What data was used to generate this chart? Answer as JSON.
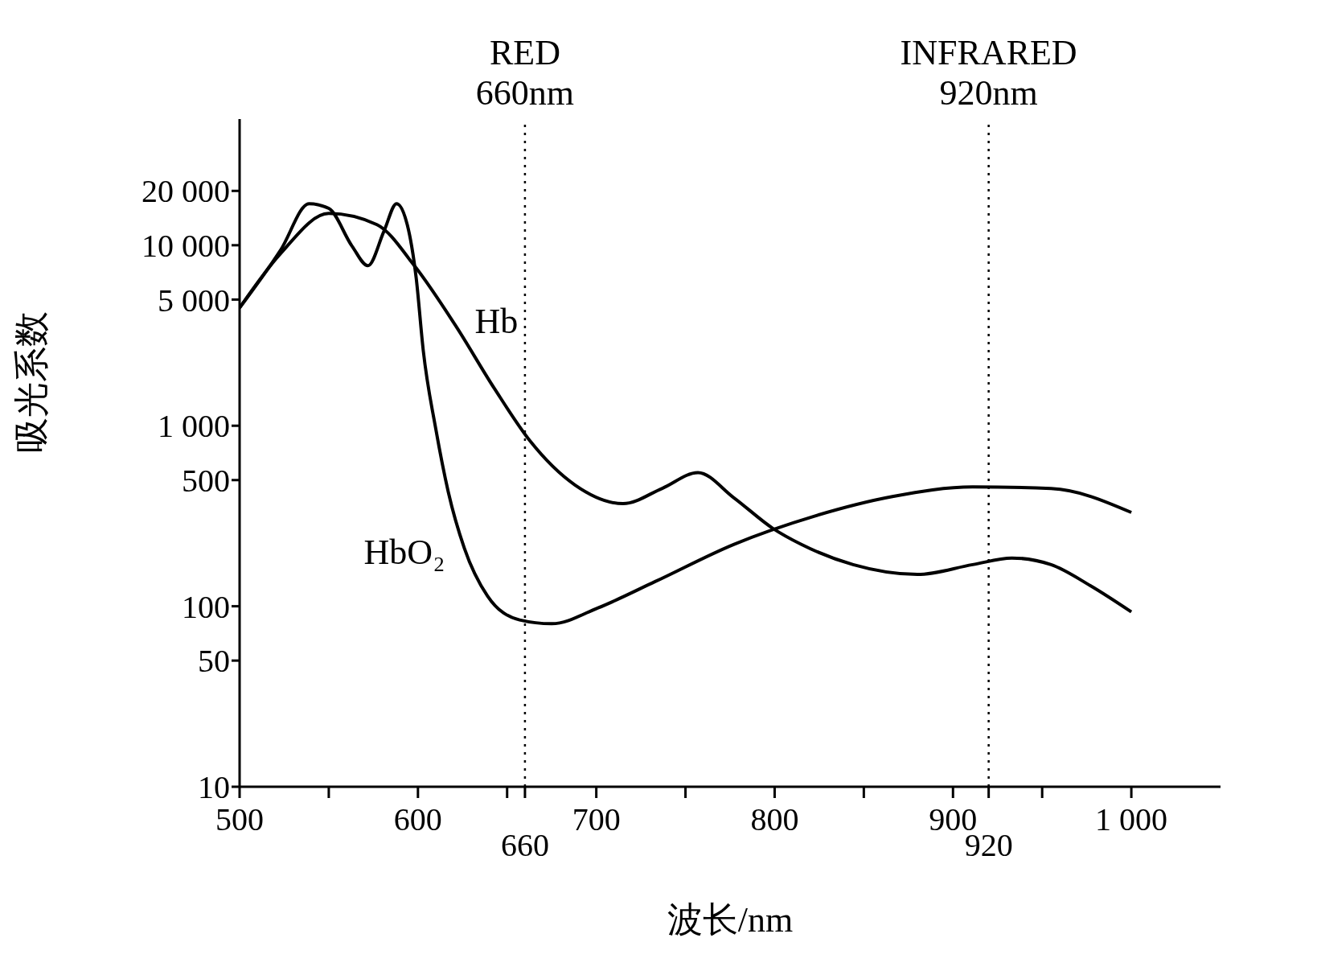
{
  "chart_data": {
    "type": "line",
    "xlabel": "波长/nm",
    "ylabel": "吸光系数",
    "log": "y",
    "xlim": [
      500,
      1050
    ],
    "ylim": [
      10,
      50000
    ],
    "xticks": [
      500,
      {
        "value": 550,
        "label": null
      },
      600,
      {
        "value": 650,
        "label": null
      },
      700,
      {
        "value": 750,
        "label": null
      },
      800,
      {
        "value": 850,
        "label": null
      },
      900,
      {
        "value": 950,
        "label": null
      },
      {
        "value": 1000,
        "label": "1 000"
      },
      {
        "value": 660,
        "label": null
      },
      {
        "value": 920,
        "label": null
      }
    ],
    "annotations": [
      "660",
      "920"
    ],
    "yticks": [
      10,
      50,
      100,
      500,
      {
        "value": 1000,
        "label": "1 000"
      },
      {
        "value": 5000,
        "label": "5 000"
      },
      {
        "value": 10000,
        "label": "10 000"
      },
      {
        "value": 20000,
        "label": "20 000"
      }
    ],
    "series": [
      {
        "name": "Hb",
        "color": "#000000",
        "x": [
          500,
          523,
          550,
          577,
          598,
          621,
          643,
          663,
          688,
          715,
          737,
          757,
          777,
          799,
          815,
          844,
          880,
          911,
          933,
          955,
          977,
          1000
        ],
        "values": [
          4500,
          9000,
          15000,
          13000,
          7700,
          3600,
          1600,
          820,
          470,
          370,
          450,
          550,
          400,
          270,
          220,
          170,
          150,
          170,
          185,
          170,
          130,
          93
        ]
      },
      {
        "name": "HbO₂",
        "color": "#000000",
        "x": [
          500,
          523,
          539,
          550,
          563,
          572,
          581,
          588,
          594,
          599,
          603,
          610,
          617,
          626,
          639,
          657,
          675,
          701,
          733,
          777,
          822,
          866,
          911,
          955,
          1000
        ],
        "values": [
          4500,
          9400,
          17000,
          16000,
          9900,
          7700,
          12000,
          17000,
          13000,
          6600,
          2600,
          960,
          430,
          210,
          114,
          84,
          80,
          98,
          137,
          220,
          315,
          405,
          458,
          449,
          331
        ]
      }
    ],
    "ref_lines": [
      {
        "axis": "x",
        "value": 660,
        "label": "RED\n660nm",
        "line_style": "dotted",
        "color": "#000000"
      },
      {
        "axis": "x",
        "value": 920,
        "label": "INFRARED\n920nm",
        "line_style": "dotted",
        "color": "#000000"
      }
    ]
  }
}
